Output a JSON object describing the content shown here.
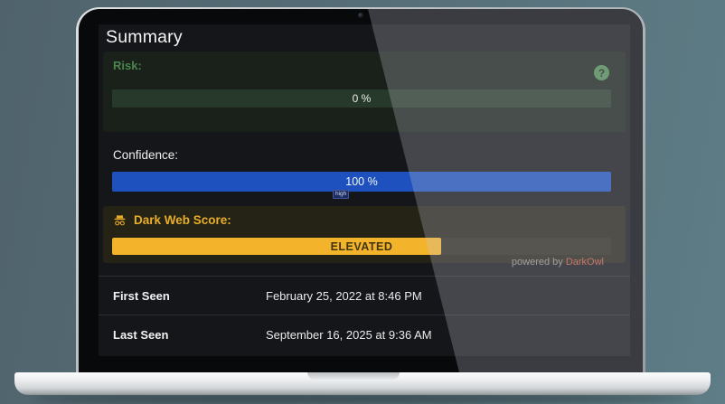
{
  "colors": {
    "risk-green": "#4a854f",
    "risk-track": "#27392a",
    "confidence-blue": "#1e51bd",
    "score-gold": "#f3b42c",
    "score-label-gold": "#e9ae27",
    "brand-red": "#c9594a",
    "help-green": "#4f8d53"
  },
  "panel": {
    "title": "Summary",
    "help_icon": "?",
    "risk": {
      "label": "Risk:",
      "value_text": "0 %",
      "percent": 0
    },
    "confidence": {
      "label": "Confidence:",
      "value_text": "100 %",
      "percent": 100,
      "badge": "high"
    },
    "dark_web": {
      "label": "Dark Web Score:",
      "level_text": "ELEVATED",
      "fill_percent": 66
    },
    "powered_by": {
      "prefix": "powered by ",
      "brand": "DarkOwl"
    },
    "rows": [
      {
        "label": "First Seen",
        "value": "February 25, 2022 at 8:46 PM"
      },
      {
        "label": "Last Seen",
        "value": "September 16, 2025 at 9:36 AM"
      }
    ]
  }
}
